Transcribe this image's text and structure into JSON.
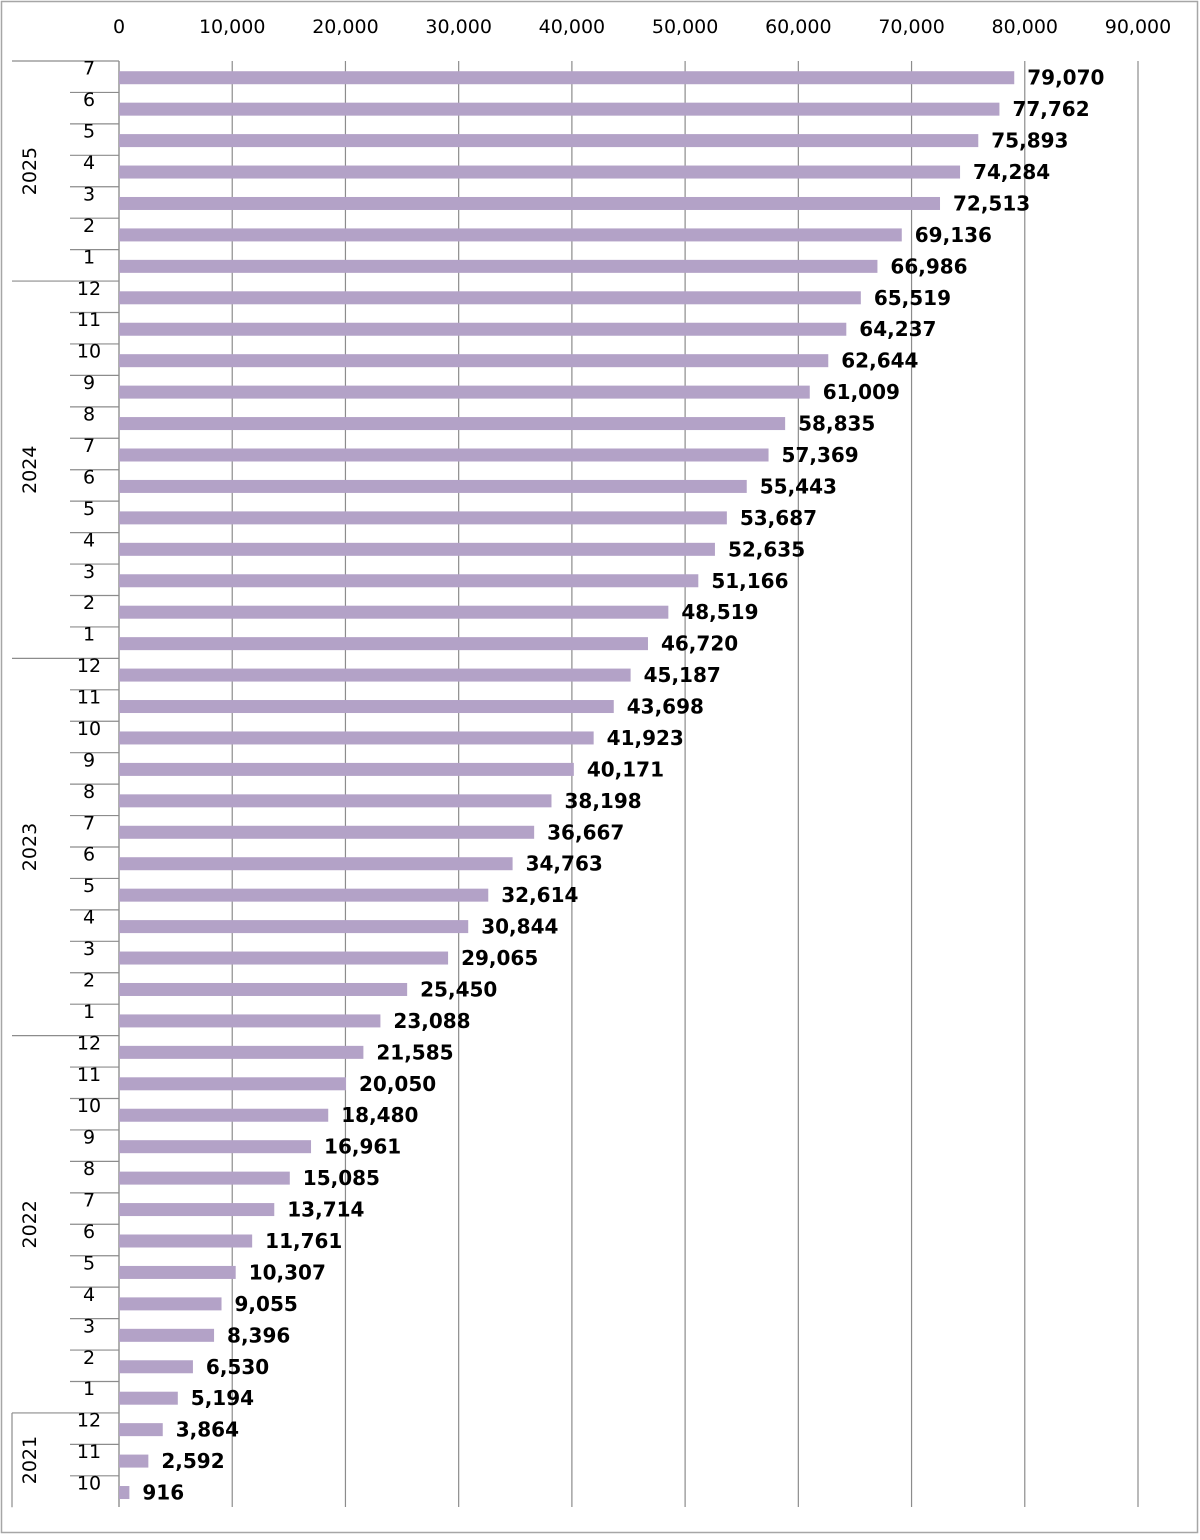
{
  "chart_data": {
    "type": "bar",
    "orientation": "horizontal",
    "xlim": [
      0,
      90000
    ],
    "x_ticks": [
      "0",
      "10,000",
      "20,000",
      "30,000",
      "40,000",
      "50,000",
      "60,000",
      "70,000",
      "80,000",
      "90,000"
    ],
    "x_tick_values": [
      0,
      10000,
      20000,
      30000,
      40000,
      50000,
      60000,
      70000,
      80000,
      90000
    ],
    "grid": true,
    "bar_color": "#b3a2c7",
    "groups": [
      {
        "year": "2025",
        "months": [
          "7",
          "6",
          "5",
          "4",
          "3",
          "2",
          "1"
        ],
        "values": [
          79070,
          77762,
          75893,
          74284,
          72513,
          69136,
          66986
        ],
        "labels": [
          "79,070",
          "77,762",
          "75,893",
          "74,284",
          "72,513",
          "69,136",
          "66,986"
        ]
      },
      {
        "year": "2024",
        "months": [
          "12",
          "11",
          "10",
          "9",
          "8",
          "7",
          "6",
          "5",
          "4",
          "3",
          "2",
          "1"
        ],
        "values": [
          65519,
          64237,
          62644,
          61009,
          58835,
          57369,
          55443,
          53687,
          52635,
          51166,
          48519,
          46720
        ],
        "labels": [
          "65,519",
          "64,237",
          "62,644",
          "61,009",
          "58,835",
          "57,369",
          "55,443",
          "53,687",
          "52,635",
          "51,166",
          "48,519",
          "46,720"
        ]
      },
      {
        "year": "2023",
        "months": [
          "12",
          "11",
          "10",
          "9",
          "8",
          "7",
          "6",
          "5",
          "4",
          "3",
          "2",
          "1"
        ],
        "values": [
          45187,
          43698,
          41923,
          40171,
          38198,
          36667,
          34763,
          32614,
          30844,
          29065,
          25450,
          23088
        ],
        "labels": [
          "45,187",
          "43,698",
          "41,923",
          "40,171",
          "38,198",
          "36,667",
          "34,763",
          "32,614",
          "30,844",
          "29,065",
          "25,450",
          "23,088"
        ]
      },
      {
        "year": "2022",
        "months": [
          "12",
          "11",
          "10",
          "9",
          "8",
          "7",
          "6",
          "5",
          "4",
          "3",
          "2",
          "1"
        ],
        "values": [
          21585,
          20050,
          18480,
          16961,
          15085,
          13714,
          11761,
          10307,
          9055,
          8396,
          6530,
          5194
        ],
        "labels": [
          "21,585",
          "20,050",
          "18,480",
          "16,961",
          "15,085",
          "13,714",
          "11,761",
          "10,307",
          "9,055",
          "8,396",
          "6,530",
          "5,194"
        ]
      },
      {
        "year": "2021",
        "months": [
          "12",
          "11",
          "10"
        ],
        "values": [
          3864,
          2592,
          916
        ],
        "labels": [
          "3,864",
          "2,592",
          "916"
        ]
      }
    ]
  }
}
